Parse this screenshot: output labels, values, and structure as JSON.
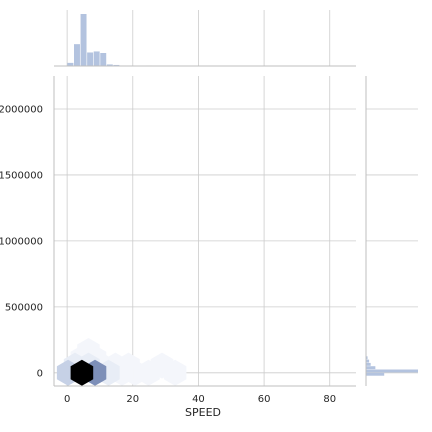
{
  "chart_data": {
    "type": "hexbin",
    "xlabel": "SPEED",
    "ylabel": "",
    "xlim": [
      -4,
      88
    ],
    "ylim": [
      -100000,
      2250000
    ],
    "x_ticks": [
      0,
      20,
      40,
      60,
      80
    ],
    "y_ticks": [
      0,
      500000,
      1000000,
      1500000,
      2000000
    ],
    "x_tick_labels": [
      "0",
      "20",
      "40",
      "60",
      "80"
    ],
    "y_tick_labels": [
      "0",
      "500000",
      "1000000",
      "1500000",
      "2000000"
    ],
    "grid": true,
    "colors": {
      "hist": "#b3c3df",
      "hex_darkest": "#000000",
      "hex_dark": "#7d8fb8",
      "hex_mid": "#c6d1e6",
      "hex_light": "#e8edf6",
      "hex_faint": "#f4f6fb",
      "grid": "#cccccc",
      "spine": "#bfbfbf"
    },
    "hexbins": [
      {
        "x": 4.5,
        "y": 0,
        "density": 1.0
      },
      {
        "x": 8.5,
        "y": 0,
        "density": 0.55
      },
      {
        "x": 0.3,
        "y": 0,
        "density": 0.22
      },
      {
        "x": 2.4,
        "y": 55000,
        "density": 0.12
      },
      {
        "x": 6.5,
        "y": 55000,
        "density": 0.12
      },
      {
        "x": 12.6,
        "y": 0,
        "density": 0.08
      },
      {
        "x": 10.6,
        "y": 55000,
        "density": 0.05
      },
      {
        "x": 4.5,
        "y": 110000,
        "density": 0.05
      },
      {
        "x": 8.5,
        "y": 110000,
        "density": 0.04
      },
      {
        "x": 16.7,
        "y": 0,
        "density": 0.04
      },
      {
        "x": 6.5,
        "y": 165000,
        "density": 0.03
      },
      {
        "x": 20.7,
        "y": 0,
        "density": 0.03
      },
      {
        "x": 24.8,
        "y": 0,
        "density": 0.02
      },
      {
        "x": 14.7,
        "y": 55000,
        "density": 0.02
      },
      {
        "x": 18.7,
        "y": 55000,
        "density": 0.02
      },
      {
        "x": 28.9,
        "y": 55000,
        "density": 0.015
      },
      {
        "x": 32.9,
        "y": 0,
        "density": 0.015
      }
    ],
    "x_marginal_hist": {
      "bin_edges": [
        -2,
        0,
        2,
        4,
        6,
        8,
        10,
        12,
        14,
        16,
        18,
        20,
        22,
        24,
        26,
        28,
        30,
        32,
        34,
        36,
        38,
        40
      ],
      "counts": [
        0,
        0.06,
        0.42,
        1.0,
        0.26,
        0.28,
        0.25,
        0.03,
        0.02,
        0.01,
        0.01,
        0,
        0,
        0.01,
        0,
        0,
        0,
        0,
        0,
        0,
        0
      ]
    },
    "y_marginal_hist": {
      "bin_edges": [
        -25000,
        0,
        25000,
        50000,
        75000,
        100000,
        125000,
        150000
      ],
      "counts": [
        0.35,
        1.0,
        0.18,
        0.09,
        0.06,
        0.03,
        0.01
      ]
    }
  }
}
